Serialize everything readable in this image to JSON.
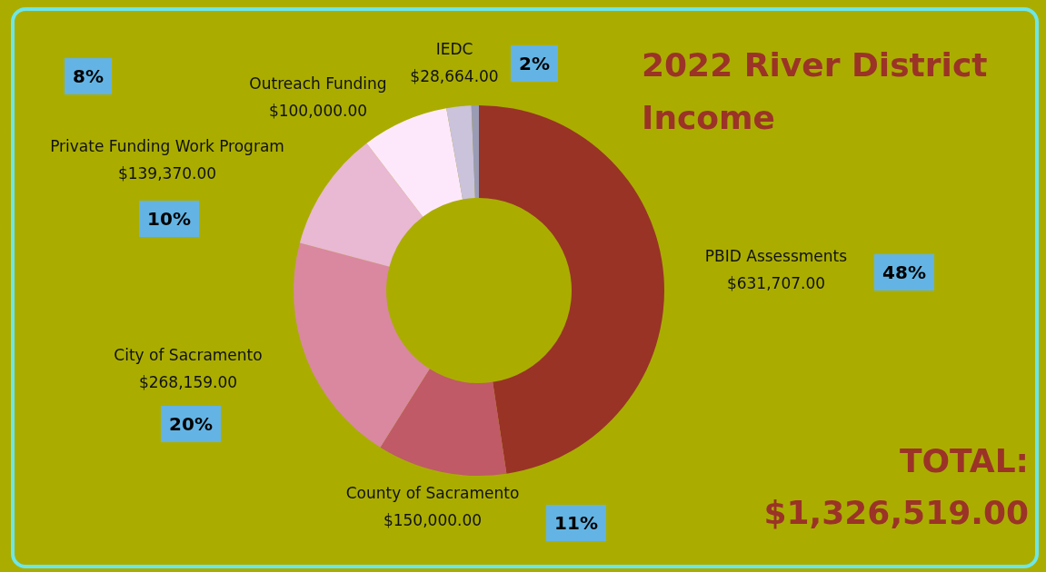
{
  "chart_data": {
    "type": "donut",
    "title": "2022 River District Income",
    "categories": [
      "PBID Assessments",
      "County of Sacramento",
      "City of Sacramento",
      "Private Funding Work Program",
      "Outreach Funding",
      "IEDC",
      null
    ],
    "values": [
      631707,
      150000,
      268159,
      139370,
      100000,
      28664,
      8619
    ],
    "value_labels": [
      "$631,707.00",
      "$150,000.00",
      "$268,159.00",
      "$139,370.00",
      "$100,000.00",
      "$28,664.00",
      null
    ],
    "colors": [
      "#993326",
      "#c05a66",
      "#d988a0",
      "#e9b8d3",
      "#fde8fb",
      "#cbc2dc",
      "#9a9cb6"
    ],
    "annotations": [
      {
        "text": "48%",
        "x": "PBID Assessments"
      },
      {
        "text": "11%",
        "x": "County of Sacramento"
      },
      {
        "text": "20%",
        "x": "City of Sacramento"
      },
      {
        "text": "10%",
        "x": "Private Funding Work Program"
      },
      {
        "text": "8%",
        "x": "Outreach Funding"
      },
      {
        "text": "2%",
        "x": "IEDC"
      },
      "TOTAL:",
      "$1,326,519.00"
    ]
  }
}
